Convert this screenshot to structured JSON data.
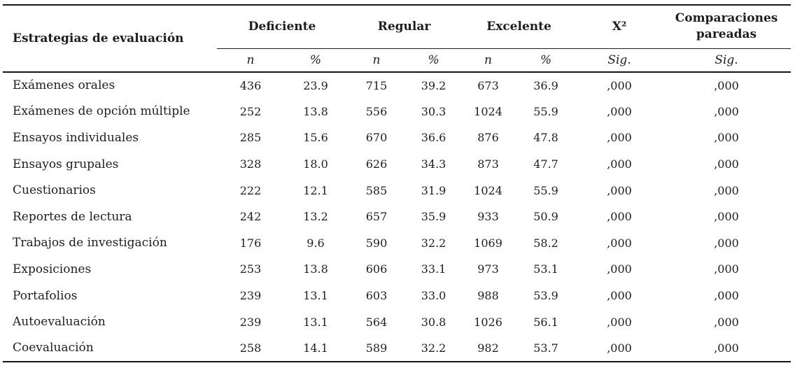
{
  "table": {
    "col_header": "Estrategias de evaluación",
    "groups": [
      {
        "label": "Deficiente"
      },
      {
        "label": "Regular"
      },
      {
        "label": "Excelente"
      },
      {
        "label": "X²"
      },
      {
        "label": "Comparaciones pareadas"
      }
    ],
    "subheaders": [
      "n",
      "%",
      "n",
      "%",
      "n",
      "%",
      "Sig.",
      "Sig."
    ],
    "rows": [
      {
        "label": "Exámenes orales",
        "values": [
          "436",
          "23.9",
          "715",
          "39.2",
          "673",
          "36.9",
          ",000",
          ",000"
        ]
      },
      {
        "label": "Exámenes de opción múltiple",
        "values": [
          "252",
          "13.8",
          "556",
          "30.3",
          "1024",
          "55.9",
          ",000",
          ",000"
        ]
      },
      {
        "label": "Ensayos individuales",
        "values": [
          "285",
          "15.6",
          "670",
          "36.6",
          "876",
          "47.8",
          ",000",
          ",000"
        ]
      },
      {
        "label": "Ensayos grupales",
        "values": [
          "328",
          "18.0",
          "626",
          "34.3",
          "873",
          "47.7",
          ",000",
          ",000"
        ]
      },
      {
        "label": "Cuestionarios",
        "values": [
          "222",
          "12.1",
          "585",
          "31.9",
          "1024",
          "55.9",
          ",000",
          ",000"
        ]
      },
      {
        "label": "Reportes de lectura",
        "values": [
          "242",
          "13.2",
          "657",
          "35.9",
          "933",
          "50.9",
          ",000",
          ",000"
        ]
      },
      {
        "label": "Trabajos de investigación",
        "values": [
          "176",
          "9.6",
          "590",
          "32.2",
          "1069",
          "58.2",
          ",000",
          ",000"
        ]
      },
      {
        "label": "Exposiciones",
        "values": [
          "253",
          "13.8",
          "606",
          "33.1",
          "973",
          "53.1",
          ",000",
          ",000"
        ]
      },
      {
        "label": "Portafolios",
        "values": [
          "239",
          "13.1",
          "603",
          "33.0",
          "988",
          "53.9",
          ",000",
          ",000"
        ]
      },
      {
        "label": "Autoevaluación",
        "values": [
          "239",
          "13.1",
          "564",
          "30.8",
          "1026",
          "56.1",
          ",000",
          ",000"
        ]
      },
      {
        "label": "Coevaluación",
        "values": [
          "258",
          "14.1",
          "589",
          "32.2",
          "982",
          "53.7",
          ",000",
          ",000"
        ]
      }
    ]
  },
  "colors": {
    "text": "#1e1e1e",
    "border": "#161616",
    "background": "#ffffff"
  }
}
